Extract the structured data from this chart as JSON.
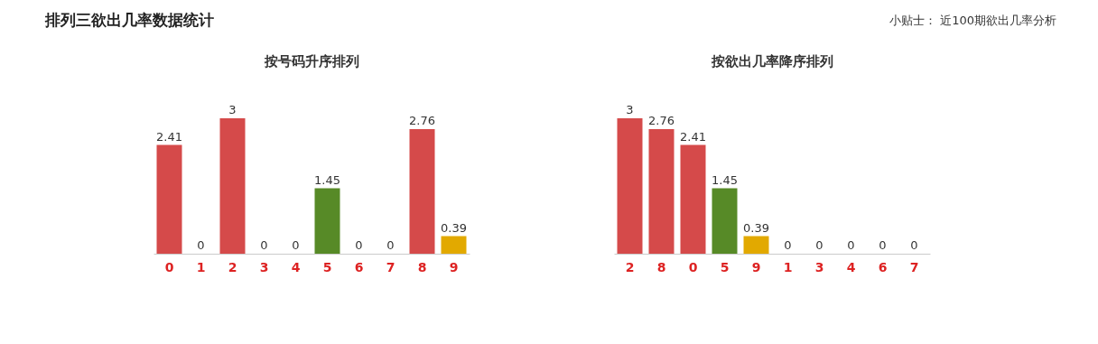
{
  "chart_data": [
    {
      "type": "other",
      "title": "排列三欲出几率数据统计",
      "annotations": [
        "小贴士：  近100期欲出几率分析"
      ]
    },
    {
      "type": "bar",
      "title": "按号码升序排列",
      "categories": [
        "0",
        "1",
        "2",
        "3",
        "4",
        "5",
        "6",
        "7",
        "8",
        "9"
      ],
      "values": [
        2.41,
        0,
        3,
        0,
        0,
        1.45,
        0,
        0,
        2.76,
        0.39
      ],
      "colors": [
        "#d54a4a",
        "#d54a4a",
        "#d54a4a",
        "#d54a4a",
        "#d54a4a",
        "#578a27",
        "#d54a4a",
        "#d54a4a",
        "#d54a4a",
        "#e2a900"
      ],
      "data_labels": true,
      "grid": false
    },
    {
      "type": "bar",
      "title": "按欲出几率降序排列",
      "categories": [
        "2",
        "8",
        "0",
        "5",
        "9",
        "1",
        "3",
        "4",
        "6",
        "7"
      ],
      "values": [
        3,
        2.76,
        2.41,
        1.45,
        0.39,
        0,
        0,
        0,
        0,
        0
      ],
      "colors": [
        "#d54a4a",
        "#d54a4a",
        "#d54a4a",
        "#578a27",
        "#e2a900",
        "#d54a4a",
        "#d54a4a",
        "#d54a4a",
        "#d54a4a",
        "#d54a4a"
      ],
      "data_labels": true,
      "grid": false
    }
  ]
}
